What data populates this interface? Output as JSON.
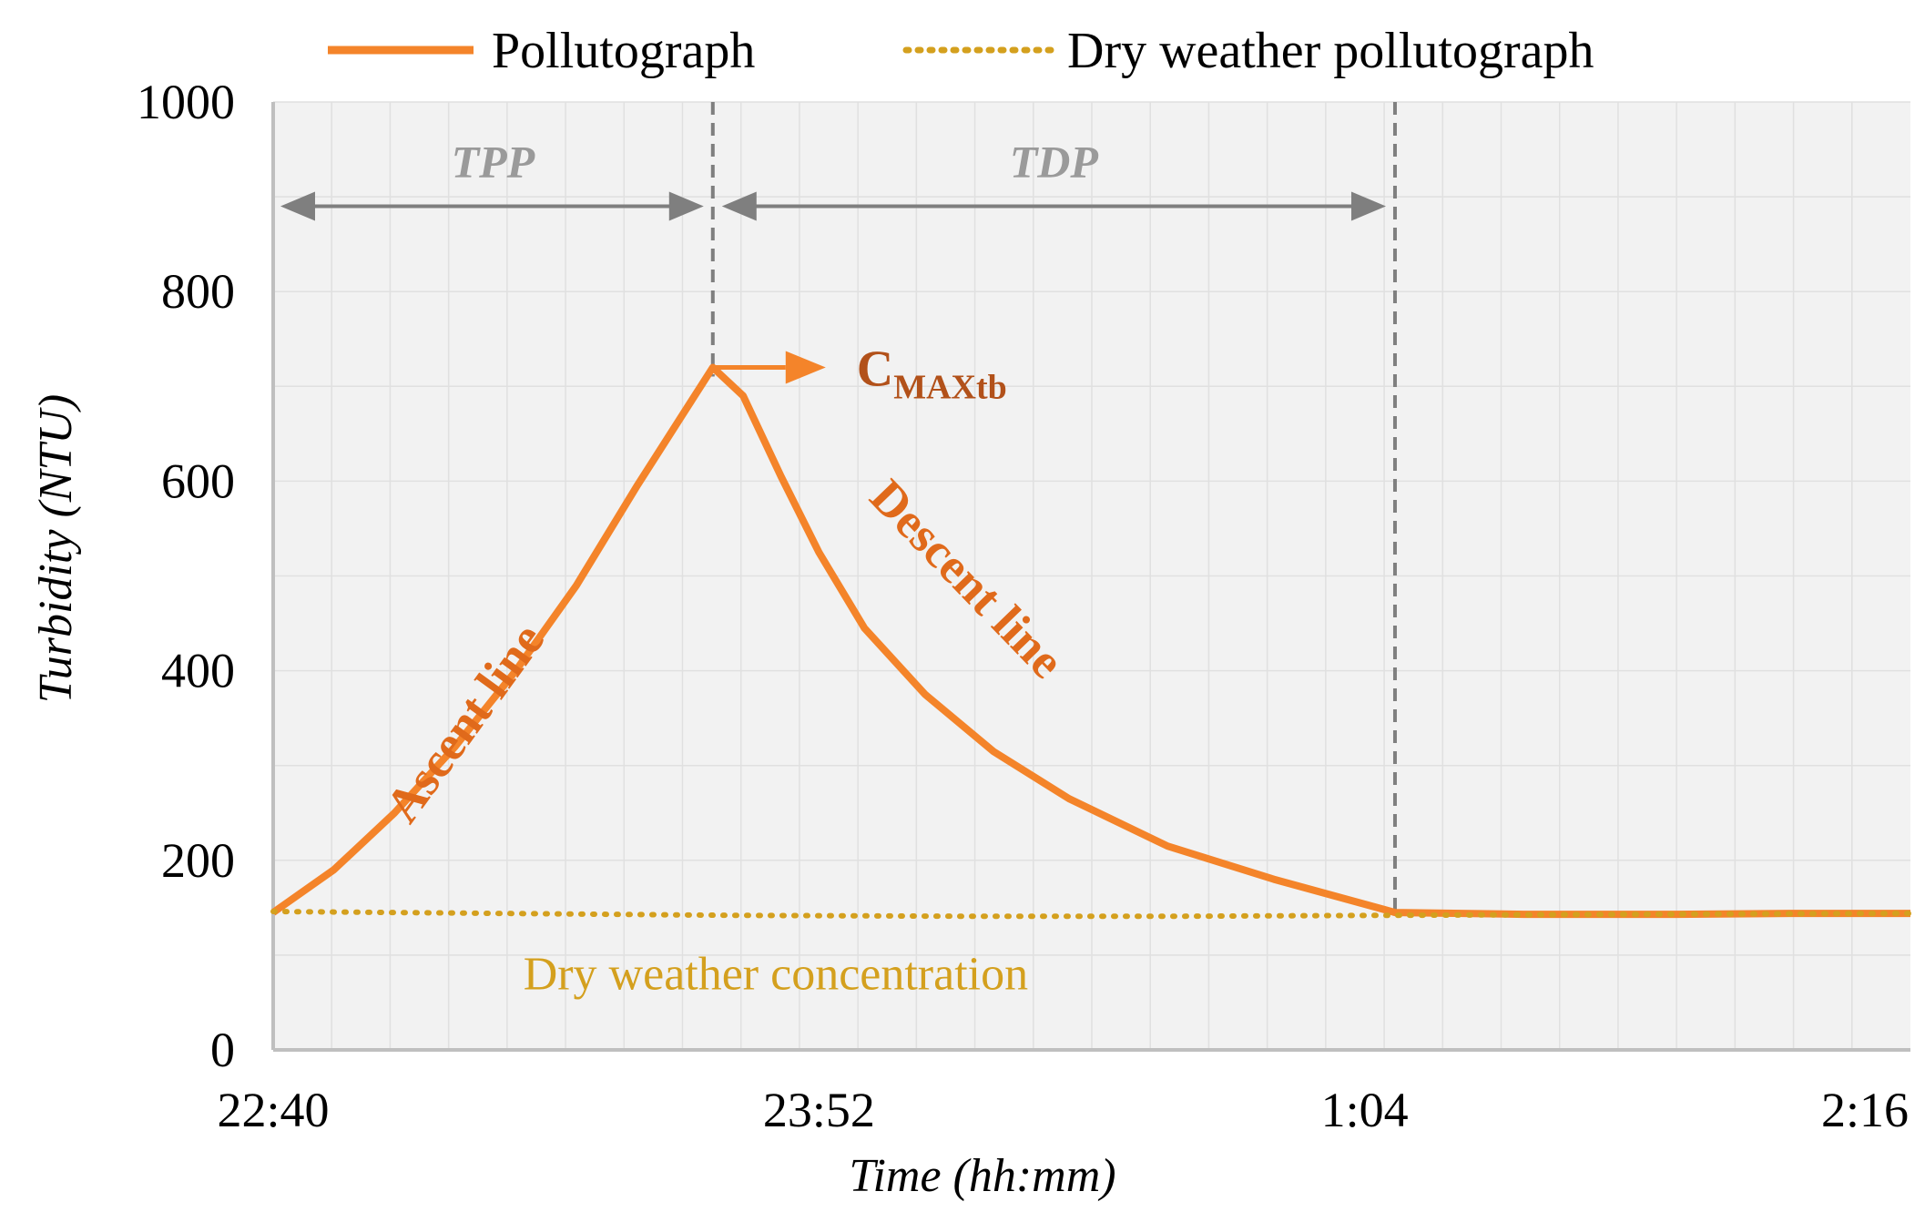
{
  "chart_data": {
    "type": "line",
    "title": "",
    "xlabel": "Time (hh:mm)",
    "ylabel": "Turbidity  (NTU)",
    "ylim": [
      0,
      1000
    ],
    "yticks": [
      0,
      200,
      400,
      600,
      800,
      1000
    ],
    "xlim_minutes": [
      0,
      216
    ],
    "xticks": [
      {
        "minutes": 0,
        "label": "22:40"
      },
      {
        "minutes": 72,
        "label": "23:52"
      },
      {
        "minutes": 144,
        "label": "1:04"
      },
      {
        "minutes": 216,
        "label": "2:16"
      }
    ],
    "series": [
      {
        "name": "Pollutograph",
        "color": "#f4842a",
        "style": "solid",
        "minutes": [
          0,
          8,
          16,
          24,
          32,
          40,
          48,
          54,
          58,
          62,
          67,
          72,
          78,
          86,
          95,
          105,
          118,
          132,
          148,
          165,
          185,
          200,
          216
        ],
        "values": [
          145,
          190,
          250,
          320,
          400,
          490,
          595,
          670,
          720,
          690,
          605,
          525,
          445,
          375,
          315,
          265,
          215,
          180,
          145,
          143,
          143,
          144,
          144
        ]
      },
      {
        "name": "Dry weather pollutograph",
        "color": "#d4a01e",
        "style": "dotted",
        "minutes": [
          0,
          30,
          60,
          90,
          120,
          148,
          180,
          216
        ],
        "values": [
          146,
          144,
          142,
          141,
          141,
          142,
          143,
          144
        ]
      }
    ],
    "markers": [
      {
        "minutes": 58,
        "label": "CMAXtb",
        "style": "dashed"
      },
      {
        "minutes": 148,
        "label": "",
        "style": "dashed"
      }
    ],
    "dimension_arrows": [
      {
        "label": "TPP",
        "from_minutes": 0,
        "to_minutes": 58,
        "y": 890
      },
      {
        "label": "TDP",
        "from_minutes": 58,
        "to_minutes": 148,
        "y": 890
      }
    ],
    "annotations": {
      "cmax_main": "C",
      "cmax_sub": "MAXtb",
      "ascent": "Ascent line",
      "descent": "Descent line",
      "dry_concentration": "Dry weather concentration"
    },
    "legend": [
      {
        "label": "Pollutograph",
        "color": "#f4842a",
        "style": "solid"
      },
      {
        "label": "Dry weather pollutograph",
        "color": "#d4a01e",
        "style": "dotted"
      }
    ],
    "legend_position": "top"
  }
}
